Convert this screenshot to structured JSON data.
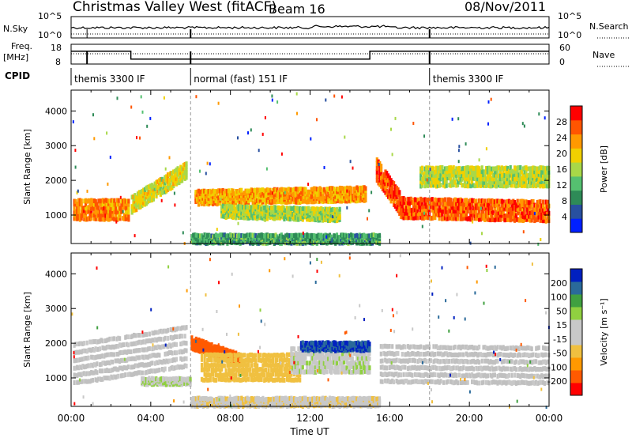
{
  "header": {
    "station": "Christmas Valley West (fitACF)",
    "beam": "Beam 16",
    "date": "08/Nov/2011"
  },
  "summary": {
    "nsky_label": "N.Sky",
    "nsky_ticks": [
      "10^5",
      "10^0"
    ],
    "nsearch_label": "N.Search",
    "nsearch_ticks": [
      "10^5",
      "10^0"
    ],
    "freq_label_line1": "Freq.",
    "freq_label_line2": "[MHz]",
    "freq_ticks": [
      "18",
      "8"
    ],
    "nave_label": "Nave",
    "nave_ticks": [
      "60",
      "0"
    ],
    "cpid_label": "CPID",
    "cpid_segments": [
      {
        "label": "themis 3300 IF",
        "start_hour": 0
      },
      {
        "label": "normal (fast) 151 IF",
        "start_hour": 6
      },
      {
        "label": "themis 3300 IF",
        "start_hour": 18
      }
    ],
    "frequency_segments": [
      {
        "start_hour": 0,
        "end_hour": 3,
        "freq_mhz": 14.5
      },
      {
        "start_hour": 3,
        "end_hour": 15,
        "freq_mhz": 10.5
      },
      {
        "start_hour": 15,
        "end_hour": 24,
        "freq_mhz": 14.5
      }
    ]
  },
  "colors": {
    "power_scale": [
      "#0020ff",
      "#2850a0",
      "#2e8b57",
      "#55c070",
      "#a8d848",
      "#f0d000",
      "#ff9900",
      "#ff5500",
      "#ff0000"
    ],
    "velocity_scale": [
      "#ff0000",
      "#ff5a00",
      "#ff9900",
      "#f0c040",
      "#c8c8c8",
      "#c8c8c8",
      "#90d040",
      "#40a040",
      "#2a6a9a",
      "#0020c0"
    ],
    "ground_scatter": "#c0c0c0"
  },
  "chart_data": [
    {
      "type": "heatmap",
      "name": "power-panel",
      "ylabel": "Slant Range [km]",
      "xlabel": "Time UT",
      "x_ticks": [
        "00:00",
        "04:00",
        "08:00",
        "12:00",
        "16:00",
        "20:00",
        "00:00"
      ],
      "xlim_hours": [
        0,
        24
      ],
      "y_ticks": [
        "1000",
        "2000",
        "3000",
        "4000"
      ],
      "ylim_km": [
        180,
        4600
      ],
      "colorbar_label": "Power [dB]",
      "colorbar_ticks": [
        "4",
        "8",
        "12",
        "16",
        "20",
        "24",
        "28"
      ],
      "colorbar_range": [
        0,
        30
      ],
      "features": [
        {
          "feature": "early echo band",
          "t_start": 0.1,
          "t_end": 2.9,
          "r_start_km": 1150,
          "r_end_km": 1150,
          "thickness_km": 520,
          "value": 23
        },
        {
          "feature": "rising band",
          "t_start": 3.0,
          "t_end": 5.8,
          "r_start_km": 1300,
          "r_end_km": 2300,
          "thickness_km": 420,
          "value": 17
        },
        {
          "feature": "daytime arc",
          "t_start": 6.2,
          "t_end": 14.8,
          "r_start_km": 1500,
          "r_end_km": 1600,
          "thickness_km": 350,
          "value": 21
        },
        {
          "feature": "lower daytime band",
          "t_start": 7.5,
          "t_end": 13.5,
          "r_start_km": 1100,
          "r_end_km": 1000,
          "thickness_km": 300,
          "value": 15
        },
        {
          "feature": "near-range echoes",
          "t_start": 6.0,
          "t_end": 15.5,
          "r_start_km": 300,
          "r_end_km": 300,
          "thickness_km": 220,
          "value": 10
        },
        {
          "feature": "evening decay",
          "t_start": 15.3,
          "t_end": 16.5,
          "r_start_km": 2300,
          "r_end_km": 1300,
          "thickness_km": 600,
          "value": 25
        },
        {
          "feature": "night band",
          "t_start": 16.5,
          "t_end": 24.0,
          "r_start_km": 1200,
          "r_end_km": 1100,
          "thickness_km": 520,
          "value": 25
        },
        {
          "feature": "upper night band",
          "t_start": 17.5,
          "t_end": 24.0,
          "r_start_km": 2100,
          "r_end_km": 2100,
          "thickness_km": 500,
          "value": 16
        }
      ]
    },
    {
      "type": "heatmap",
      "name": "velocity-panel",
      "ylabel": "Slant Range [km]",
      "xlabel": "Time UT",
      "x_ticks": [
        "00:00",
        "04:00",
        "08:00",
        "12:00",
        "16:00",
        "20:00",
        "00:00"
      ],
      "xlim_hours": [
        0,
        24
      ],
      "y_ticks": [
        "1000",
        "2000",
        "3000",
        "4000"
      ],
      "ylim_km": [
        180,
        4600
      ],
      "colorbar_label": "Velocity [m s⁻¹]",
      "colorbar_ticks": [
        "200",
        "100",
        "50",
        "15",
        "-15",
        "-50",
        "-100",
        "-200"
      ],
      "colorbar_range": [
        -250,
        250
      ],
      "features": [
        {
          "feature": "ground scatter early",
          "t_start": 0.1,
          "t_end": 5.8,
          "r_start_km": 1400,
          "r_end_km": 1900,
          "thickness_km": 1100,
          "value": 0
        },
        {
          "feature": "red arc onset",
          "t_start": 6.0,
          "t_end": 8.5,
          "r_start_km": 2000,
          "r_end_km": 1500,
          "thickness_km": 300,
          "value": -180
        },
        {
          "feature": "orange daytime region",
          "t_start": 6.5,
          "t_end": 11.5,
          "r_start_km": 1300,
          "r_end_km": 1300,
          "thickness_km": 700,
          "value": -70
        },
        {
          "feature": "green daytime region",
          "t_start": 11.0,
          "t_end": 15.0,
          "r_start_km": 1500,
          "r_end_km": 1500,
          "thickness_km": 650,
          "value": 40
        },
        {
          "feature": "blue upper edge",
          "t_start": 11.5,
          "t_end": 15.0,
          "r_start_km": 1900,
          "r_end_km": 1900,
          "thickness_km": 200,
          "value": 200
        },
        {
          "feature": "near-range echoes",
          "t_start": 6.0,
          "t_end": 15.5,
          "r_start_km": 300,
          "r_end_km": 300,
          "thickness_km": 200,
          "value": -40
        },
        {
          "feature": "ground scatter night",
          "t_start": 15.5,
          "t_end": 24.0,
          "r_start_km": 1400,
          "r_end_km": 1350,
          "thickness_km": 1000,
          "value": 0
        },
        {
          "feature": "green low band",
          "t_start": 3.5,
          "t_end": 6.0,
          "r_start_km": 900,
          "r_end_km": 900,
          "thickness_km": 150,
          "value": 45
        }
      ]
    }
  ]
}
